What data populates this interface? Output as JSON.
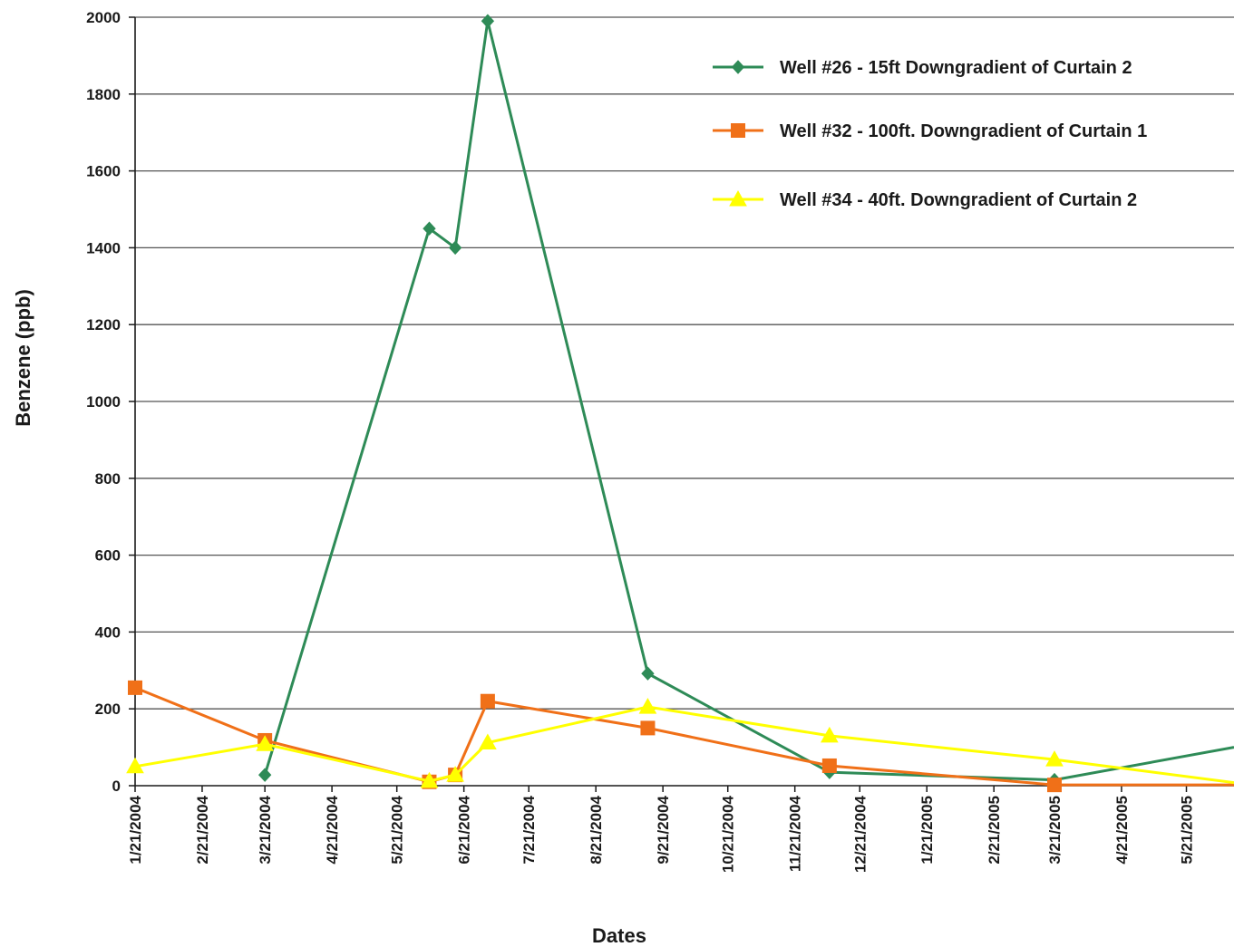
{
  "chart_data": {
    "type": "line",
    "title": "",
    "xlabel": "Dates",
    "ylabel": "Benzene (ppb)",
    "ylim": [
      0,
      2000
    ],
    "yticks": [
      "0",
      "200",
      "400",
      "600",
      "800",
      "1000",
      "1200",
      "1400",
      "1600",
      "1800",
      "2000"
    ],
    "xlim": [
      "2004-01-21",
      "2005-06-12"
    ],
    "xtick_dates": [
      "2004-01-21",
      "2004-02-21",
      "2004-03-21",
      "2004-04-21",
      "2004-05-21",
      "2004-06-21",
      "2004-07-21",
      "2004-08-21",
      "2004-09-21",
      "2004-10-21",
      "2004-11-21",
      "2004-12-21",
      "2005-01-21",
      "2005-02-21",
      "2005-03-21",
      "2005-04-21",
      "2005-05-21"
    ],
    "xtick_labels": [
      "1/21/2004",
      "2/21/2004",
      "3/21/2004",
      "4/21/2004",
      "5/21/2004",
      "6/21/2004",
      "7/21/2004",
      "8/21/2004",
      "9/21/2004",
      "10/21/2004",
      "11/21/2004",
      "12/21/2004",
      "1/21/2005",
      "2/21/2005",
      "3/21/2005",
      "4/21/2005",
      "5/21/2005"
    ],
    "grid": "horizontal",
    "legend_position": "top-right",
    "series": [
      {
        "name": "Well #26 - 15ft Downgradient of Curtain 2",
        "color": "#2e8b57",
        "marker": "diamond",
        "points": [
          {
            "x": "2004-03-21",
            "y": 28
          },
          {
            "x": "2004-06-05",
            "y": 1450
          },
          {
            "x": "2004-06-17",
            "y": 1400
          },
          {
            "x": "2004-07-02",
            "y": 1990
          },
          {
            "x": "2004-09-14",
            "y": 292
          },
          {
            "x": "2004-12-07",
            "y": 35
          },
          {
            "x": "2005-03-21",
            "y": 15
          },
          {
            "x": "2005-06-12",
            "y": 100
          }
        ]
      },
      {
        "name": "Well #32 - 100ft. Downgradient of Curtain 1",
        "color": "#f07018",
        "marker": "square",
        "points": [
          {
            "x": "2004-01-21",
            "y": 255
          },
          {
            "x": "2004-03-21",
            "y": 118
          },
          {
            "x": "2004-06-05",
            "y": 10
          },
          {
            "x": "2004-06-17",
            "y": 28
          },
          {
            "x": "2004-07-02",
            "y": 220
          },
          {
            "x": "2004-09-14",
            "y": 150
          },
          {
            "x": "2004-12-07",
            "y": 52
          },
          {
            "x": "2005-03-21",
            "y": 2
          },
          {
            "x": "2005-06-12",
            "y": 2
          }
        ]
      },
      {
        "name": "Well #34 - 40ft. Downgradient of Curtain 2",
        "color": "#ffff00",
        "marker": "triangle",
        "points": [
          {
            "x": "2004-01-21",
            "y": 50
          },
          {
            "x": "2004-03-21",
            "y": 108
          },
          {
            "x": "2004-06-05",
            "y": 12
          },
          {
            "x": "2004-06-17",
            "y": 28
          },
          {
            "x": "2004-07-02",
            "y": 112
          },
          {
            "x": "2004-09-14",
            "y": 205
          },
          {
            "x": "2004-12-07",
            "y": 130
          },
          {
            "x": "2005-03-21",
            "y": 68
          },
          {
            "x": "2005-06-12",
            "y": 8
          }
        ]
      }
    ]
  }
}
